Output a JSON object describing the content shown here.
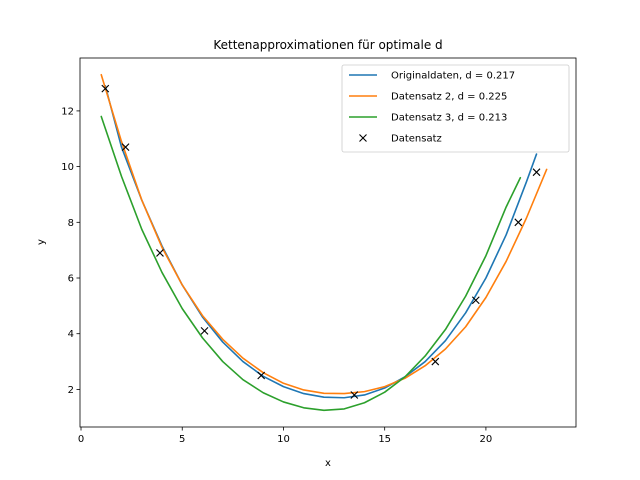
{
  "chart_data": {
    "type": "line",
    "title": "Kettenapproximationen für optimale d",
    "xlabel": "x",
    "ylabel": "y",
    "xlim": [
      -0.05,
      24.45
    ],
    "ylim": [
      0.65,
      13.9
    ],
    "xticks": [
      0,
      5,
      10,
      15,
      20
    ],
    "yticks": [
      2,
      4,
      6,
      8,
      10,
      12
    ],
    "grid": false,
    "legend_position": "upper right",
    "series": [
      {
        "name": "Originaldaten, d = 0.217",
        "kind": "line",
        "color": "#1f77b4",
        "x": [
          1.2,
          2,
          3,
          4,
          5,
          6,
          7,
          8,
          9,
          10,
          11,
          12,
          13,
          14,
          15,
          16,
          17,
          18,
          19,
          20,
          21,
          22,
          22.5
        ],
        "y": [
          12.9,
          10.7,
          8.8,
          7.15,
          5.75,
          4.6,
          3.7,
          3.0,
          2.47,
          2.1,
          1.85,
          1.72,
          1.7,
          1.8,
          2.05,
          2.45,
          3.0,
          3.75,
          4.75,
          6.0,
          7.55,
          9.45,
          10.45
        ]
      },
      {
        "name": "Datensatz 2, d = 0.225",
        "kind": "line",
        "color": "#ff7f0e",
        "x": [
          1.0,
          2,
          3,
          4,
          5,
          6,
          7,
          8,
          9,
          10,
          11,
          12,
          13,
          14,
          15,
          16,
          17,
          18,
          19,
          20,
          21,
          22,
          23.0
        ],
        "y": [
          13.3,
          10.9,
          8.8,
          7.1,
          5.75,
          4.65,
          3.8,
          3.12,
          2.6,
          2.22,
          1.98,
          1.86,
          1.85,
          1.92,
          2.1,
          2.4,
          2.85,
          3.45,
          4.25,
          5.3,
          6.6,
          8.15,
          9.9
        ]
      },
      {
        "name": "Datensatz 3, d = 0.213",
        "kind": "line",
        "color": "#2ca02c",
        "x": [
          1.0,
          2,
          3,
          4,
          5,
          6,
          7,
          8,
          9,
          10,
          11,
          12,
          13,
          14,
          15,
          16,
          17,
          18,
          19,
          20,
          21,
          21.7
        ],
        "y": [
          11.8,
          9.65,
          7.75,
          6.2,
          4.9,
          3.85,
          3.0,
          2.35,
          1.88,
          1.55,
          1.34,
          1.25,
          1.3,
          1.52,
          1.9,
          2.45,
          3.2,
          4.15,
          5.35,
          6.8,
          8.55,
          9.6
        ]
      },
      {
        "name": "Datensatz",
        "kind": "marker",
        "marker": "x",
        "color": "#000000",
        "x": [
          1.2,
          2.2,
          3.9,
          6.1,
          8.9,
          13.5,
          17.5,
          19.5,
          21.6,
          22.5
        ],
        "y": [
          12.8,
          10.7,
          6.9,
          4.1,
          2.5,
          1.8,
          3.0,
          5.2,
          8.0,
          9.8
        ]
      }
    ]
  }
}
